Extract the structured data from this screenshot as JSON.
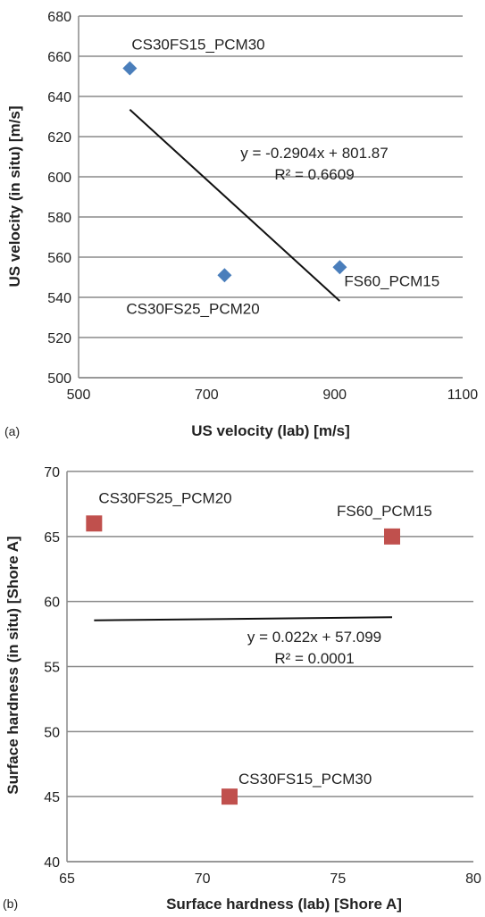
{
  "chart_data": [
    {
      "type": "scatter",
      "panel": "(a)",
      "xlabel": "US velocity (lab) [m/s]",
      "ylabel": "US velocity (in situ) [m/s]",
      "xlim": [
        500,
        1100
      ],
      "ylim": [
        500,
        680
      ],
      "xticks": [
        500,
        700,
        900,
        1100
      ],
      "yticks": [
        500,
        520,
        540,
        560,
        580,
        600,
        620,
        640,
        660,
        680
      ],
      "grid": "horizontal",
      "marker": "diamond",
      "color": "#4a7ebb",
      "points": [
        {
          "x": 580,
          "y": 654,
          "label": "CS30FS15_PCM30"
        },
        {
          "x": 728,
          "y": 551,
          "label": "CS30FS25_PCM20"
        },
        {
          "x": 908,
          "y": 555,
          "label": "FS60_PCM15"
        }
      ],
      "trendline": {
        "x": [
          580,
          908
        ],
        "slope": -0.2904,
        "intercept": 801.87,
        "equation": "y = -0.2904x + 801.87",
        "r2": "R² = 0.6609"
      }
    },
    {
      "type": "scatter",
      "panel": "(b)",
      "xlabel": "Surface hardness (lab) [Shore A]",
      "ylabel": "Surface hardness (in situ) [Shore A]",
      "xlim": [
        65,
        80
      ],
      "ylim": [
        40,
        70
      ],
      "xticks": [
        65,
        70,
        75,
        80
      ],
      "yticks": [
        40,
        45,
        50,
        55,
        60,
        65,
        70
      ],
      "grid": "horizontal",
      "marker": "square",
      "color": "#c0504d",
      "points": [
        {
          "x": 66,
          "y": 66,
          "label": "CS30FS25_PCM20"
        },
        {
          "x": 77,
          "y": 65,
          "label": "FS60_PCM15"
        },
        {
          "x": 71,
          "y": 45,
          "label": "CS30FS15_PCM30"
        }
      ],
      "trendline": {
        "x": [
          66,
          77
        ],
        "slope": 0.022,
        "intercept": 57.099,
        "equation": "y = 0.022x + 57.099",
        "r2": "R² = 0.0001"
      }
    }
  ]
}
